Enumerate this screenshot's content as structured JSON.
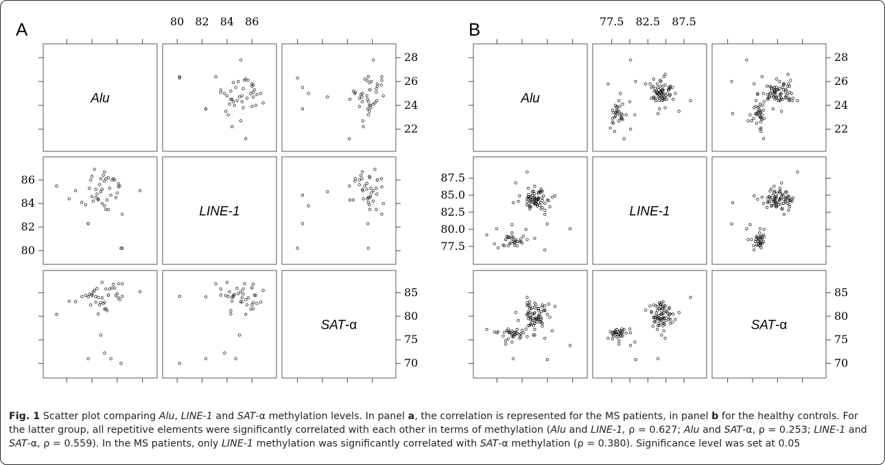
{
  "chart_data": [
    {
      "type": "scatter",
      "panel": "A",
      "variables": [
        {
          "label": "Alu",
          "italic_prefix": "Alu",
          "plain_suffix": ""
        },
        {
          "label": "LINE-1",
          "italic_prefix": "LINE-1",
          "plain_suffix": ""
        },
        {
          "label": "SAT-α",
          "italic_prefix": "SAT",
          "plain_suffix": "-α"
        }
      ],
      "axes": {
        "Alu": {
          "range": [
            20.5,
            28.8
          ],
          "ticks": [
            22,
            24,
            26,
            28
          ]
        },
        "LINE-1": {
          "range": [
            79.2,
            87.6
          ],
          "ticks": [
            80,
            82,
            84,
            86
          ]
        },
        "SAT-α": {
          "range": [
            67.8,
            88.8
          ],
          "ticks": [
            70,
            75,
            80,
            85
          ]
        }
      },
      "points": [
        [
          24.5,
          84.4,
          84.0
        ],
        [
          27.8,
          85.1,
          85.2
        ],
        [
          26.2,
          85.5,
          83.5
        ],
        [
          25.8,
          86.0,
          86.0
        ],
        [
          25.2,
          84.3,
          81.2
        ],
        [
          24.6,
          85.6,
          82.4
        ],
        [
          26.0,
          84.9,
          84.8
        ],
        [
          25.0,
          86.7,
          83.0
        ],
        [
          24.2,
          86.9,
          85.5
        ],
        [
          23.8,
          85.3,
          84.7
        ],
        [
          22.7,
          85.1,
          83.1
        ],
        [
          21.2,
          85.5,
          80.4
        ],
        [
          24.9,
          86.4,
          82.7
        ],
        [
          25.6,
          86.0,
          86.0
        ],
        [
          25.9,
          84.5,
          84.4
        ],
        [
          24.4,
          84.8,
          85.9
        ],
        [
          24.0,
          86.3,
          84.4
        ],
        [
          25.4,
          85.3,
          85.8
        ],
        [
          22.2,
          84.4,
          83.2
        ],
        [
          23.5,
          83.9,
          84.4
        ],
        [
          24.1,
          84.2,
          85.2
        ],
        [
          26.1,
          85.7,
          83.9
        ],
        [
          25.1,
          86.1,
          81.6
        ],
        [
          26.4,
          83.1,
          86.9
        ],
        [
          24.8,
          84.0,
          87.2
        ],
        [
          25.7,
          86.1,
          86.8
        ],
        [
          23.2,
          84.1,
          84.2
        ],
        [
          24.0,
          84.6,
          84.6
        ],
        [
          25.3,
          86.2,
          84.5
        ],
        [
          26.3,
          80.2,
          70.0
        ],
        [
          23.7,
          82.3,
          84.1
        ],
        [
          24.3,
          85.2,
          83.0
        ],
        [
          24.5,
          84.3,
          80.5
        ],
        [
          25.0,
          83.8,
          72.2
        ],
        [
          25.5,
          84.7,
          71.0
        ],
        [
          24.7,
          85.0,
          76.0
        ],
        [
          23.9,
          86.0,
          82.4
        ],
        [
          26.4,
          80.2,
          84.2
        ],
        [
          23.7,
          82.3,
          71.0
        ],
        [
          25.1,
          83.5,
          85.8
        ],
        [
          25.0,
          85.9,
          81.5
        ],
        [
          24.3,
          84.5,
          84.2
        ],
        [
          24.7,
          86.1,
          82.9
        ],
        [
          25.3,
          83.5,
          84.5
        ],
        [
          24.8,
          85.2,
          83.9
        ],
        [
          26.1,
          85.4,
          86.9
        ]
      ]
    },
    {
      "type": "scatter",
      "panel": "B",
      "variables": [
        {
          "label": "Alu",
          "italic_prefix": "Alu",
          "plain_suffix": ""
        },
        {
          "label": "LINE-1",
          "italic_prefix": "LINE-1",
          "plain_suffix": ""
        },
        {
          "label": "SAT-α",
          "italic_prefix": "SAT",
          "plain_suffix": "-α"
        }
      ],
      "axes": {
        "Alu": {
          "range": [
            20.5,
            28.8
          ],
          "ticks": [
            22,
            24,
            26,
            28
          ]
        },
        "LINE-1": {
          "range": [
            75.5,
            90.0
          ],
          "ticks": [
            77.5,
            80.0,
            82.5,
            85.0,
            87.5
          ]
        },
        "SAT-α": {
          "range": [
            67.8,
            88.8
          ],
          "ticks": [
            70,
            75,
            80,
            85
          ]
        }
      },
      "points": [
        [
          25.6,
          85.6,
          78.5
        ],
        [
          24.6,
          84.6,
          83.1
        ],
        [
          25.4,
          85.5,
          80.4
        ],
        [
          25.3,
          84.5,
          81.7
        ],
        [
          25.3,
          84.0,
          80.1
        ],
        [
          25.0,
          84.0,
          79.6
        ],
        [
          25.1,
          83.8,
          79.5
        ],
        [
          24.8,
          85.5,
          81.8
        ],
        [
          25.8,
          82.2,
          81.3
        ],
        [
          24.6,
          83.3,
          82.4
        ],
        [
          25.0,
          84.4,
          82.8
        ],
        [
          25.0,
          86.3,
          79.3
        ],
        [
          24.6,
          83.0,
          80.8
        ],
        [
          25.0,
          84.5,
          78.6
        ],
        [
          24.5,
          86.0,
          80.5
        ],
        [
          24.7,
          84.8,
          78.3
        ],
        [
          25.5,
          83.0,
          81.0
        ],
        [
          23.7,
          84.1,
          79.1
        ],
        [
          24.7,
          84.0,
          81.6
        ],
        [
          24.4,
          83.6,
          82.3
        ],
        [
          26.1,
          84.2,
          82.6
        ],
        [
          24.8,
          85.0,
          79.1
        ],
        [
          24.5,
          84.6,
          78.0
        ],
        [
          25.8,
          82.8,
          82.2
        ],
        [
          24.6,
          83.5,
          79.8
        ],
        [
          25.0,
          85.2,
          80.7
        ],
        [
          25.6,
          83.2,
          77.9
        ],
        [
          24.5,
          84.8,
          79.5
        ],
        [
          26.2,
          83.3,
          79.8
        ],
        [
          25.4,
          83.5,
          78.8
        ],
        [
          26.6,
          84.9,
          82.1
        ],
        [
          24.5,
          84.8,
          82.3
        ],
        [
          25.8,
          83.8,
          81.2
        ],
        [
          25.5,
          83.9,
          79.8
        ],
        [
          24.4,
          83.6,
          80.2
        ],
        [
          24.9,
          85.6,
          80.5
        ],
        [
          25.0,
          83.7,
          80.7
        ],
        [
          25.3,
          85.3,
          79.9
        ],
        [
          24.8,
          84.4,
          80.5
        ],
        [
          24.7,
          84.0,
          78.4
        ],
        [
          25.6,
          84.6,
          82.0
        ],
        [
          24.4,
          84.1,
          82.9
        ],
        [
          25.5,
          85.4,
          79.3
        ],
        [
          25.3,
          85.4,
          81.6
        ],
        [
          25.0,
          84.7,
          78.5
        ],
        [
          24.7,
          83.3,
          79.7
        ],
        [
          25.5,
          85.6,
          79.4
        ],
        [
          24.5,
          85.1,
          81.0
        ],
        [
          25.3,
          84.4,
          81.2
        ],
        [
          24.7,
          84.8,
          79.8
        ],
        [
          25.2,
          84.4,
          79.5
        ],
        [
          25.1,
          84.3,
          82.4
        ],
        [
          25.1,
          84.2,
          79.4
        ],
        [
          26.0,
          84.3,
          80.4
        ],
        [
          25.2,
          83.4,
          78.8
        ],
        [
          25.1,
          84.1,
          81.6
        ],
        [
          25.7,
          84.9,
          81.2
        ],
        [
          25.5,
          85.9,
          78.7
        ],
        [
          24.6,
          84.6,
          81.7
        ],
        [
          25.0,
          83.8,
          82.0
        ],
        [
          24.4,
          84.5,
          80.5
        ],
        [
          25.3,
          84.6,
          79.7
        ],
        [
          24.9,
          84.4,
          76.0
        ],
        [
          24.7,
          84.3,
          79.2
        ],
        [
          25.3,
          84.6,
          79.4
        ],
        [
          25.0,
          84.7,
          80.7
        ],
        [
          25.2,
          83.6,
          79.4
        ],
        [
          24.6,
          84.1,
          78.1
        ],
        [
          24.9,
          83.9,
          78.0
        ],
        [
          25.0,
          83.8,
          77.2
        ],
        [
          25.6,
          84.2,
          82.4
        ],
        [
          27.8,
          80.1,
          73.8
        ],
        [
          22.0,
          80.1,
          76.5
        ],
        [
          23.3,
          83.9,
          71.0
        ],
        [
          24.4,
          88.4,
          84.0
        ],
        [
          23.5,
          86.8,
          80.8
        ],
        [
          23.8,
          84.9,
          75.3
        ],
        [
          26.0,
          80.8,
          70.8
        ],
        [
          23.2,
          80.7,
          74.5
        ],
        [
          26.4,
          84.7,
          76.9
        ],
        [
          22.7,
          78.5,
          74.1
        ],
        [
          23.0,
          77.9,
          76.6
        ],
        [
          23.2,
          79.5,
          76.4
        ],
        [
          22.5,
          77.7,
          75.8
        ],
        [
          22.9,
          78.9,
          77.3
        ],
        [
          23.0,
          78.8,
          76.5
        ],
        [
          23.1,
          78.0,
          76.5
        ],
        [
          22.6,
          77.6,
          76.6
        ],
        [
          22.8,
          79.0,
          76.9
        ],
        [
          22.9,
          78.8,
          76.8
        ],
        [
          23.3,
          78.2,
          75.6
        ],
        [
          23.2,
          78.6,
          76.9
        ],
        [
          23.4,
          78.1,
          76.5
        ],
        [
          23.5,
          78.5,
          76.6
        ],
        [
          23.4,
          77.7,
          76.1
        ],
        [
          23.4,
          78.0,
          76.6
        ],
        [
          23.3,
          78.8,
          75.8
        ],
        [
          22.9,
          77.6,
          75.2
        ],
        [
          23.5,
          78.3,
          76.1
        ],
        [
          23.6,
          78.2,
          77.2
        ],
        [
          23.8,
          78.2,
          76.1
        ],
        [
          23.9,
          78.2,
          75.6
        ],
        [
          22.7,
          78.5,
          74.8
        ],
        [
          21.2,
          79.2,
          77.2
        ],
        [
          22.1,
          77.3,
          76.7
        ],
        [
          23.6,
          77.6,
          76.4
        ],
        [
          24.0,
          78.0,
          77.0
        ],
        [
          23.9,
          78.6,
          76.3
        ],
        [
          21.8,
          77.9,
          76.7
        ],
        [
          24.1,
          79.0,
          76.5
        ],
        [
          24.3,
          80.0,
          77.3
        ],
        [
          25.8,
          77.0,
          75.3
        ],
        [
          25.0,
          78.7,
          76.0
        ],
        [
          23.2,
          79.0,
          75.8
        ],
        [
          24.4,
          78.5,
          75.7
        ]
      ]
    }
  ],
  "panel_labels": {
    "a": "A",
    "b": "B"
  },
  "caption": {
    "fig": "Fig. 1",
    "parts": [
      {
        "t": " Scatter plot comparing "
      },
      {
        "t": "Alu",
        "i": true
      },
      {
        "t": ", "
      },
      {
        "t": "LINE-1",
        "i": true
      },
      {
        "t": " and "
      },
      {
        "t": "SAT",
        "i": true
      },
      {
        "t": "-α methylation levels. In panel "
      },
      {
        "t": "a",
        "b": true
      },
      {
        "t": ", the correlation is represented for the MS patients, in panel "
      },
      {
        "t": "b",
        "b": true
      },
      {
        "t": " for the healthy controls. For the latter group, all repetitive elements were significantly correlated with each other in terms of methylation ("
      },
      {
        "t": "Alu",
        "i": true
      },
      {
        "t": " and "
      },
      {
        "t": "LINE-1,",
        "i": true
      },
      {
        "t": " ρ = 0.627; "
      },
      {
        "t": "Alu",
        "i": true
      },
      {
        "t": " and "
      },
      {
        "t": "SAT",
        "i": true
      },
      {
        "t": "-α, ρ = 0.253; "
      },
      {
        "t": "LINE-1",
        "i": true
      },
      {
        "t": " and "
      },
      {
        "t": "SAT",
        "i": true
      },
      {
        "t": "-α, ρ = 0.559). In the MS patients, only "
      },
      {
        "t": "LINE-1",
        "i": true
      },
      {
        "t": " methylation was significantly correlated with "
      },
      {
        "t": "SAT",
        "i": true
      },
      {
        "t": "-α methylation (ρ = 0.380). Significance level was set at 0.05"
      }
    ]
  }
}
